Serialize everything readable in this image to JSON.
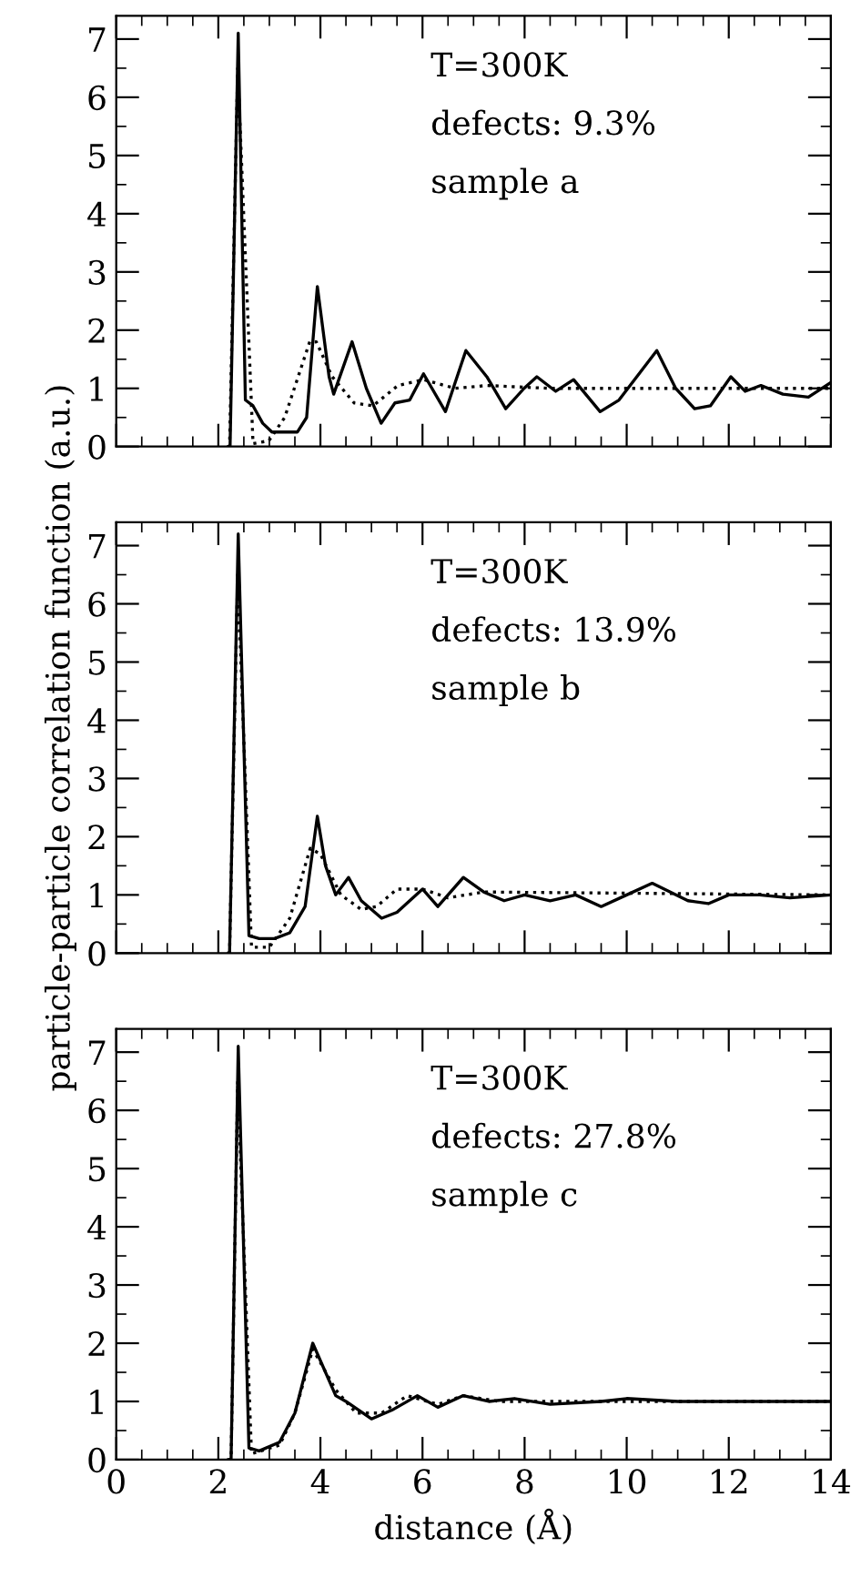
{
  "chart_data": [
    {
      "type": "line",
      "xlim": [
        0,
        14
      ],
      "ylim": [
        0,
        7.4
      ],
      "xticks": [
        0,
        2,
        4,
        6,
        8,
        10,
        12,
        14
      ],
      "yticks": [
        0,
        1,
        2,
        3,
        4,
        5,
        6,
        7
      ],
      "tick_labels": "y",
      "grid": false,
      "legend": false,
      "annotations": [
        "T=300K",
        "defects: 9.3%",
        "sample a"
      ],
      "series": [
        {
          "color": "#000000",
          "line_style": "solid",
          "x": [
            2.2,
            2.23,
            2.39,
            2.53,
            2.68,
            2.87,
            3.05,
            3.55,
            3.73,
            3.94,
            4.17,
            4.26,
            4.62,
            4.9,
            5.19,
            5.46,
            5.75,
            6.02,
            6.45,
            6.85,
            7.26,
            7.63,
            7.99,
            8.24,
            8.61,
            8.96,
            9.48,
            9.85,
            10.59,
            10.96,
            11.33,
            11.64,
            12.04,
            12.32,
            12.63,
            13.06,
            13.56,
            14
          ],
          "values": [
            0,
            0,
            7.1,
            0.8,
            0.7,
            0.4,
            0.25,
            0.25,
            0.5,
            2.75,
            1.2,
            0.9,
            1.8,
            1.0,
            0.4,
            0.75,
            0.8,
            1.25,
            0.6,
            1.65,
            1.2,
            0.65,
            1.0,
            1.2,
            0.95,
            1.15,
            0.6,
            0.8,
            1.65,
            1.0,
            0.65,
            0.7,
            1.2,
            0.95,
            1.05,
            0.9,
            0.85,
            1.1
          ]
        },
        {
          "color": "#000000",
          "line_style": "dotted",
          "x": [
            2.2,
            2.22,
            2.38,
            2.68,
            2.99,
            3.3,
            3.79,
            3.92,
            4.23,
            4.66,
            5.03,
            5.52,
            6.02,
            6.64,
            7.26,
            8.49,
            14
          ],
          "values": [
            0,
            0,
            6.5,
            0.05,
            0.1,
            0.5,
            1.8,
            1.8,
            1.2,
            0.75,
            0.7,
            1.05,
            1.15,
            1.0,
            1.05,
            1.0,
            1.0
          ]
        }
      ]
    },
    {
      "type": "line",
      "xlim": [
        0,
        14
      ],
      "ylim": [
        0,
        7.4
      ],
      "xticks": [
        0,
        2,
        4,
        6,
        8,
        10,
        12,
        14
      ],
      "yticks": [
        0,
        1,
        2,
        3,
        4,
        5,
        6,
        7
      ],
      "tick_labels": "y",
      "grid": false,
      "legend": false,
      "ylabel": "particle-particle correlation function (a.u.)",
      "annotations": [
        "T=300K",
        "defects: 13.9%",
        "sample b"
      ],
      "series": [
        {
          "color": "#000000",
          "line_style": "solid",
          "x": [
            2.2,
            2.22,
            2.39,
            2.6,
            2.8,
            3.1,
            3.4,
            3.7,
            3.94,
            4.1,
            4.3,
            4.55,
            4.8,
            5.2,
            5.5,
            6.0,
            6.3,
            6.8,
            7.2,
            7.6,
            8.0,
            8.5,
            9.0,
            9.5,
            10.0,
            10.5,
            11.2,
            11.6,
            12.0,
            12.6,
            13.2,
            14
          ],
          "values": [
            0,
            0,
            7.2,
            0.3,
            0.25,
            0.25,
            0.35,
            0.8,
            2.35,
            1.5,
            1.0,
            1.3,
            0.9,
            0.6,
            0.7,
            1.1,
            0.8,
            1.3,
            1.05,
            0.9,
            1.0,
            0.9,
            1.0,
            0.8,
            1.0,
            1.2,
            0.9,
            0.85,
            1.0,
            1.0,
            0.95,
            1.0
          ]
        },
        {
          "color": "#000000",
          "line_style": "dotted",
          "x": [
            2.2,
            2.22,
            2.38,
            2.65,
            3.0,
            3.4,
            3.8,
            4.0,
            4.4,
            4.8,
            5.1,
            5.5,
            6.0,
            6.5,
            7.2,
            14
          ],
          "values": [
            0,
            0,
            6.5,
            0.1,
            0.1,
            0.6,
            1.8,
            1.7,
            1.0,
            0.75,
            0.8,
            1.1,
            1.1,
            0.95,
            1.05,
            1.0
          ]
        }
      ]
    },
    {
      "type": "line",
      "xlim": [
        0,
        14
      ],
      "ylim": [
        0,
        7.4
      ],
      "xticks": [
        0,
        2,
        4,
        6,
        8,
        10,
        12,
        14
      ],
      "yticks": [
        0,
        1,
        2,
        3,
        4,
        5,
        6,
        7
      ],
      "grid": false,
      "legend": false,
      "xlabel": "distance (Å)",
      "annotations": [
        "T=300K",
        "defects: 27.8%",
        "sample c"
      ],
      "series": [
        {
          "color": "#000000",
          "line_style": "solid",
          "x": [
            2.2,
            2.25,
            2.39,
            2.6,
            2.8,
            3.2,
            3.5,
            3.85,
            4.3,
            4.5,
            5.0,
            5.4,
            5.9,
            6.3,
            6.8,
            7.3,
            7.8,
            8.5,
            9.5,
            10.0,
            11.0,
            12.0,
            14
          ],
          "values": [
            0,
            0,
            7.1,
            0.2,
            0.15,
            0.3,
            0.8,
            2.0,
            1.1,
            1.0,
            0.7,
            0.85,
            1.1,
            0.9,
            1.1,
            1.0,
            1.05,
            0.95,
            1.0,
            1.05,
            1.0,
            1.0,
            1.0
          ]
        },
        {
          "color": "#000000",
          "line_style": "dotted",
          "x": [
            2.2,
            2.25,
            2.38,
            2.65,
            3.2,
            3.5,
            3.85,
            4.3,
            4.7,
            5.2,
            5.7,
            6.3,
            6.8,
            7.5,
            14
          ],
          "values": [
            0,
            0,
            6.5,
            0.1,
            0.25,
            0.8,
            1.9,
            1.2,
            0.8,
            0.8,
            1.1,
            0.95,
            1.1,
            1.0,
            1.0
          ]
        }
      ]
    }
  ]
}
